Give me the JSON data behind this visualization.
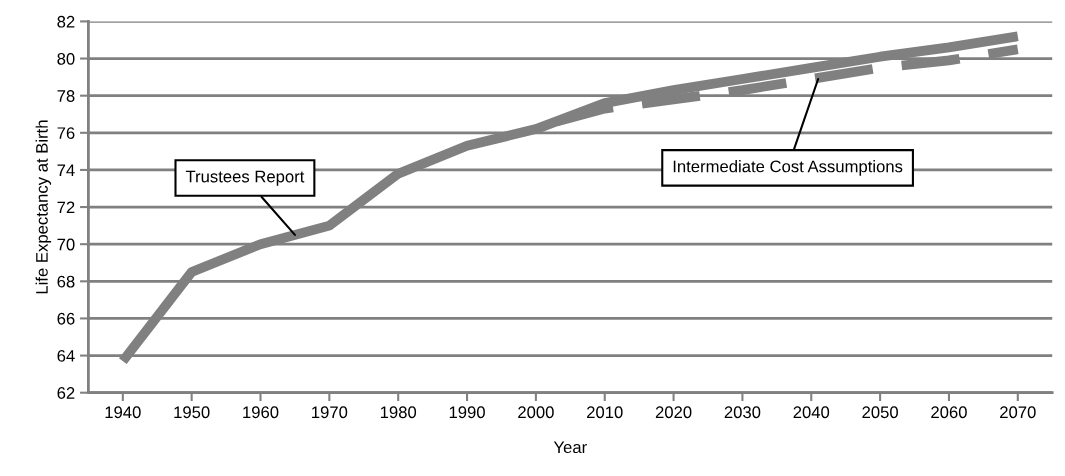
{
  "chart_data": {
    "type": "line",
    "xlabel": "Year",
    "ylabel": "Life Expectancy at Birth",
    "xlim": [
      1935,
      2075
    ],
    "xticks": [
      1940,
      1950,
      1960,
      1970,
      1980,
      1990,
      2000,
      2010,
      2020,
      2030,
      2040,
      2050,
      2060,
      2070
    ],
    "ylim": [
      62,
      82
    ],
    "yticks": [
      62,
      64,
      66,
      68,
      70,
      72,
      74,
      76,
      78,
      80,
      82
    ],
    "grid": "y",
    "series": [
      {
        "color": "#808080",
        "line_style": "solid",
        "x": [
          1940,
          1950,
          1960,
          1970,
          1980,
          1990,
          2000,
          2010,
          2020,
          2030,
          2040,
          2050,
          2060,
          2070
        ],
        "values": [
          63.7,
          68.5,
          70.0,
          71.0,
          73.8,
          75.3,
          76.2,
          77.6,
          78.3,
          78.9,
          79.5,
          80.1,
          80.6,
          81.2
        ]
      },
      {
        "color": "#808080",
        "line_style": "dashed",
        "x": [
          2003,
          2010,
          2020,
          2030,
          2040,
          2050,
          2060,
          2070
        ],
        "values": [
          76.6,
          77.3,
          77.8,
          78.3,
          78.9,
          79.5,
          79.9,
          80.5
        ]
      }
    ],
    "annotations": [
      {
        "text": "Trustees Report",
        "x": 1965,
        "y": 70.5
      },
      {
        "text": "Intermediate Cost Assumptions",
        "x": 2041,
        "y": 78.9
      }
    ]
  }
}
